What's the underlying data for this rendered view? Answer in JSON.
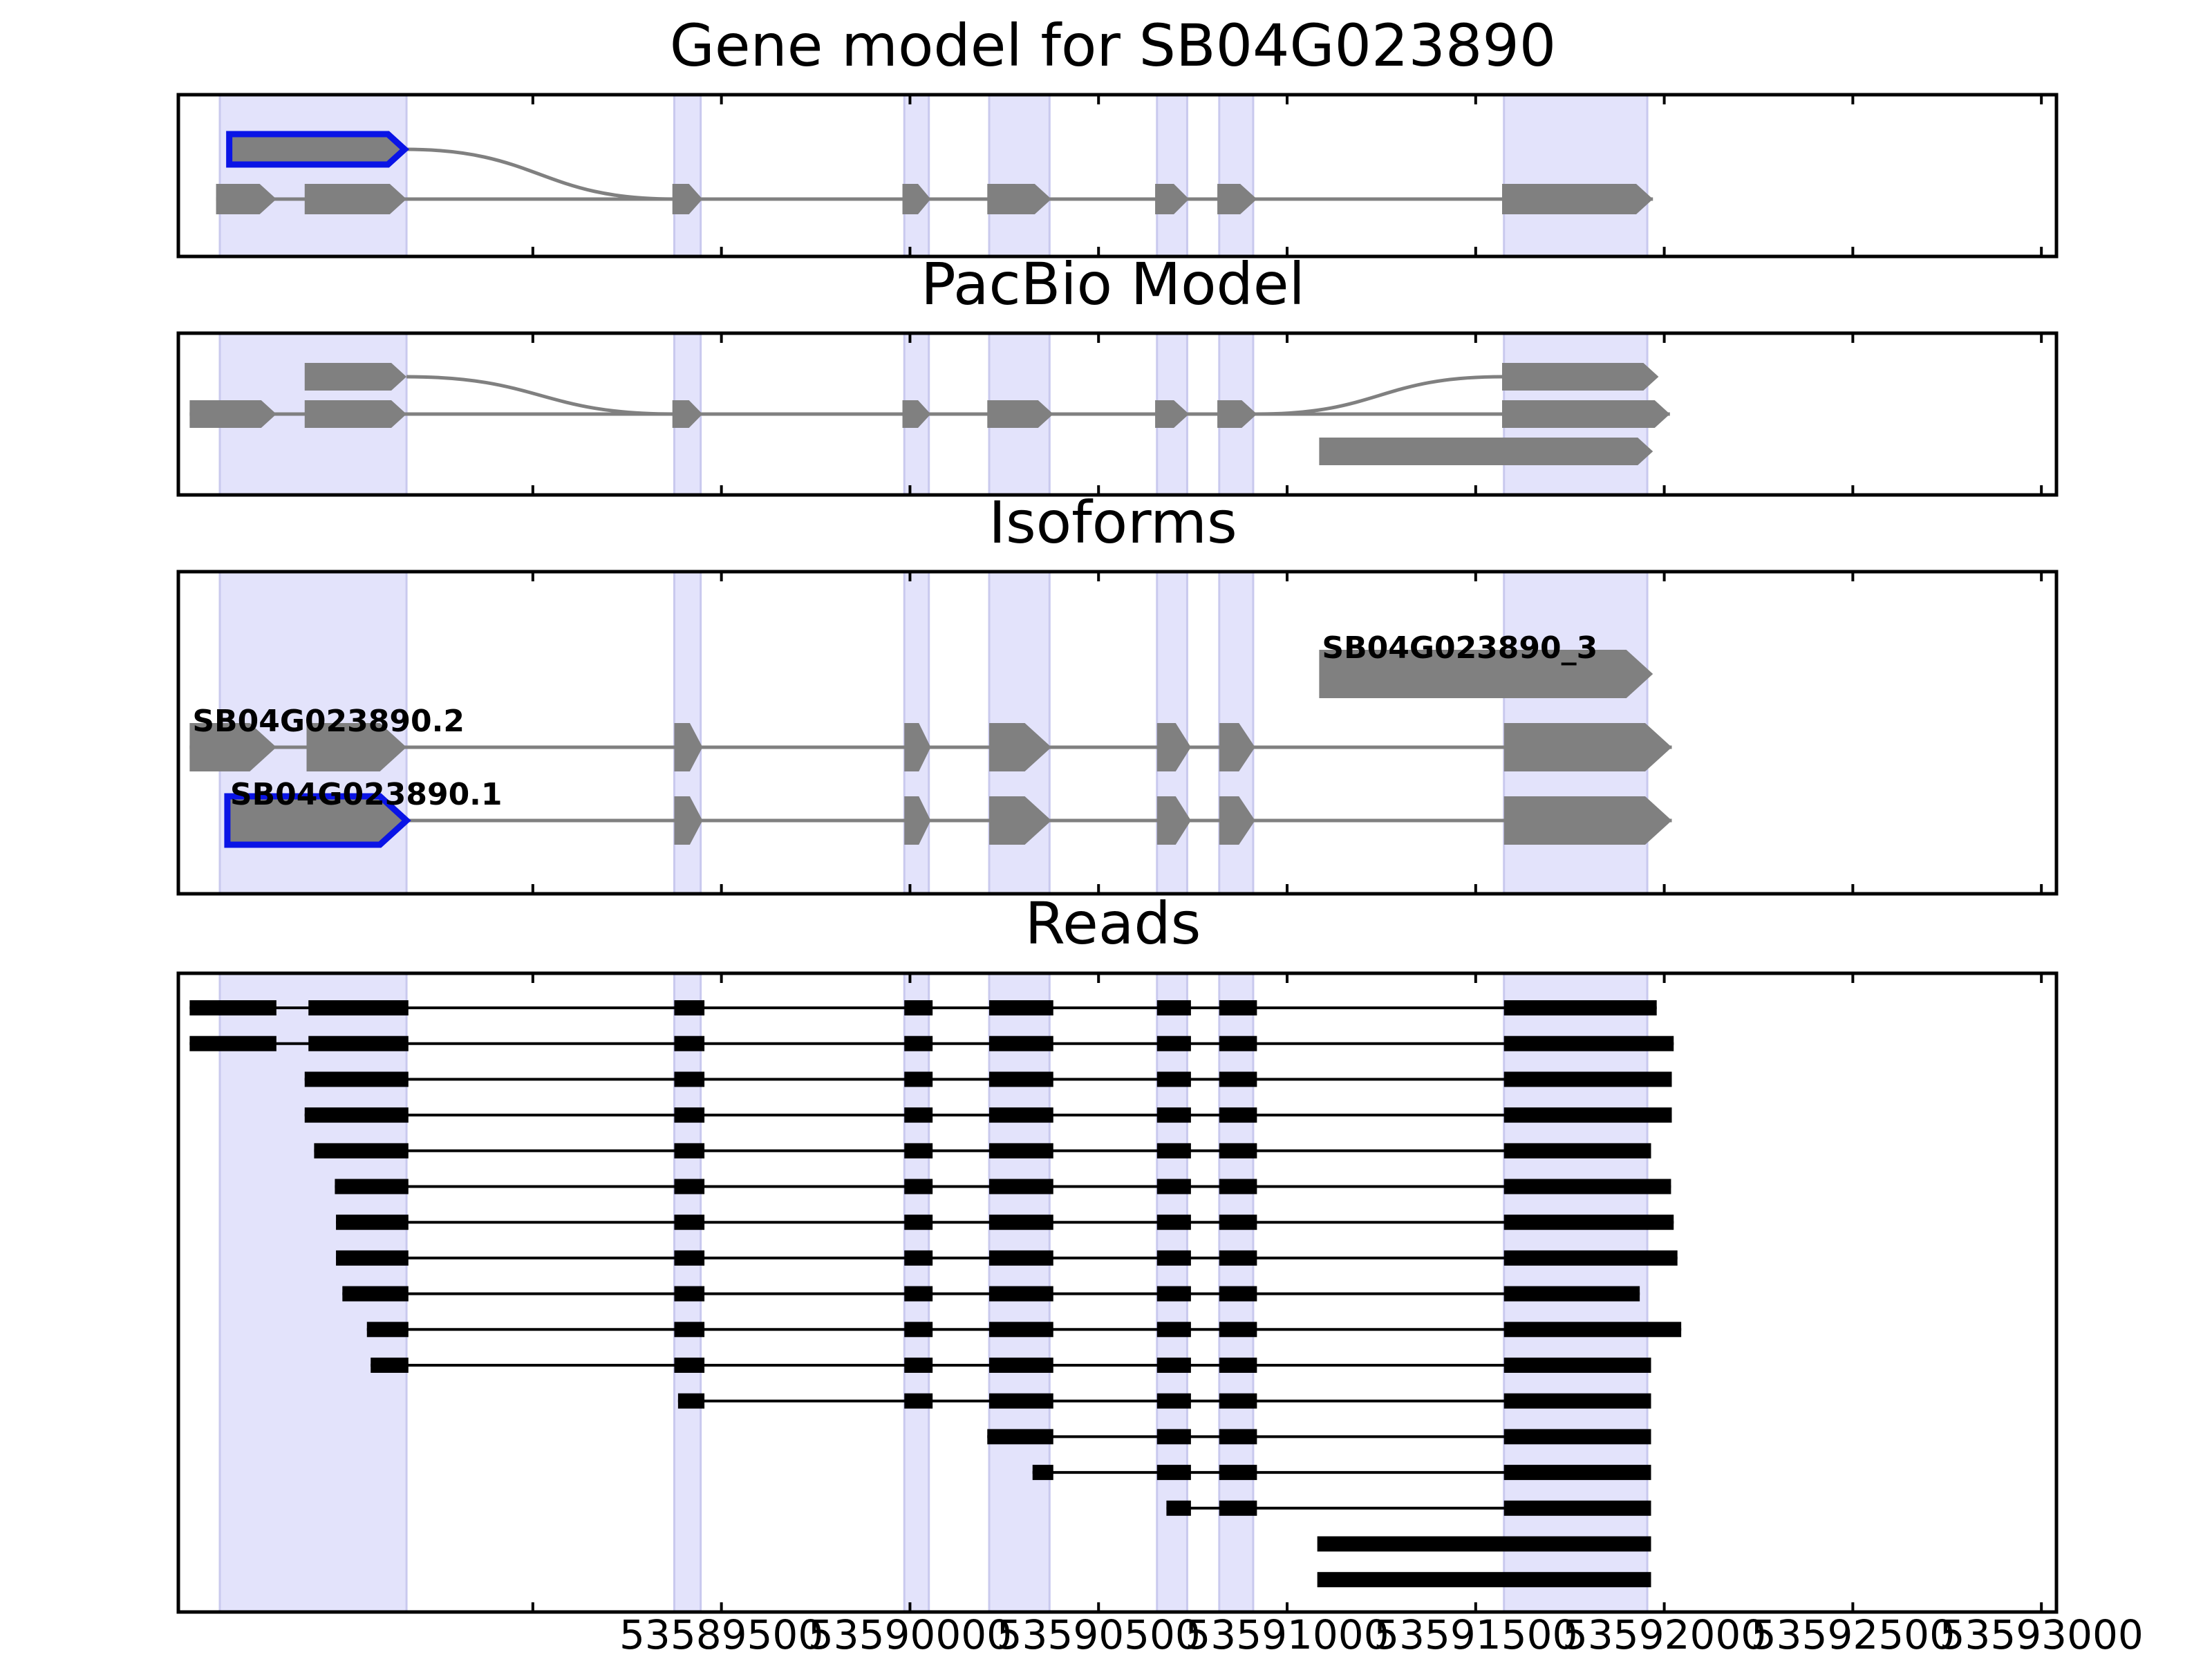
{
  "figure": {
    "xmin": 53588060,
    "xmax": 53593040,
    "xticks": [
      {
        "value": 53589500,
        "label": "53589500"
      },
      {
        "value": 53590000,
        "label": "53590000"
      },
      {
        "value": 53590500,
        "label": "53590500"
      },
      {
        "value": 53591000,
        "label": "53591000"
      },
      {
        "value": 53591500,
        "label": "53591500"
      },
      {
        "value": 53592000,
        "label": "53592000"
      },
      {
        "value": 53592500,
        "label": "53592500"
      },
      {
        "value": 53593000,
        "label": "53593000"
      }
    ],
    "xtick_minor_extra": [
      53589000
    ],
    "colors": {
      "region_fill": "#e3e3fb",
      "region_edge": "#c9c9ee",
      "feature": "#808080",
      "highlight": "#0a14e6",
      "read": "#000000",
      "axis": "#000000"
    },
    "shaded_regions": [
      [
        53588170,
        53588665
      ],
      [
        53589375,
        53589445
      ],
      [
        53589985,
        53590050
      ],
      [
        53590210,
        53590370
      ],
      [
        53590655,
        53590735
      ],
      [
        53590820,
        53590910
      ],
      [
        53591575,
        53591955
      ]
    ]
  },
  "panels": [
    {
      "id": "gene-model",
      "title": "Gene model for SB04G023890",
      "rows": 2,
      "tracks": [
        {
          "row": 0,
          "highlight": true,
          "curve_to_row": 1,
          "exons": [
            [
              53588195,
              53588660
            ]
          ]
        },
        {
          "row": 1,
          "exons": [
            [
              53588160,
              53588320
            ],
            [
              53588395,
              53588665
            ],
            [
              53589370,
              53589450
            ],
            [
              53589980,
              53590055
            ],
            [
              53590205,
              53590375
            ],
            [
              53590650,
              53590740
            ],
            [
              53590815,
              53590920
            ],
            [
              53591570,
              53591970
            ]
          ]
        }
      ]
    },
    {
      "id": "pacbio-model",
      "title": "PacBio Model",
      "rows": 3,
      "tracks": [
        {
          "row": 0,
          "curve_to_row": 1,
          "exons": [
            [
              53588395,
              53588665
            ]
          ]
        },
        {
          "row": 1,
          "exons": [
            [
              53588090,
              53588320
            ],
            [
              53588395,
              53588665
            ],
            [
              53589370,
              53589450
            ],
            [
              53589980,
              53590055
            ],
            [
              53590205,
              53590380
            ],
            [
              53590650,
              53590740
            ],
            [
              53590815,
              53590920
            ],
            [
              53591570,
              53592015
            ]
          ]
        },
        {
          "row": 0,
          "curve_from_row": 1,
          "exons": [
            [
              53591570,
              53591985
            ]
          ]
        },
        {
          "row": 2,
          "exons": [
            [
              53591085,
              53591970
            ]
          ]
        }
      ]
    },
    {
      "id": "isoforms",
      "title": "Isoforms",
      "rows": 3,
      "tracks": [
        {
          "row": 0,
          "label": "SB04G023890_3",
          "exons": [
            [
              53591085,
              53591970
            ]
          ]
        },
        {
          "row": 1,
          "label": "SB04G023890.2",
          "exons": [
            [
              53588090,
              53588320
            ],
            [
              53588400,
              53588665
            ],
            [
              53589375,
              53589450
            ],
            [
              53589985,
              53590055
            ],
            [
              53590210,
              53590375
            ],
            [
              53590655,
              53590745
            ],
            [
              53590820,
              53590915
            ],
            [
              53591575,
              53592020
            ]
          ]
        },
        {
          "row": 2,
          "label": "SB04G023890.1",
          "highlight": true,
          "exons": [
            [
              53588190,
              53588665
            ],
            [
              53589375,
              53589450
            ],
            [
              53589985,
              53590055
            ],
            [
              53590210,
              53590375
            ],
            [
              53590655,
              53590745
            ],
            [
              53590820,
              53590915
            ],
            [
              53591575,
              53592020
            ]
          ]
        }
      ]
    },
    {
      "id": "reads",
      "title": "Reads",
      "rows": 17,
      "reads": [
        [
          [
            53588090,
            53588320
          ],
          [
            53588405,
            53588670
          ],
          [
            53589375,
            53589455
          ],
          [
            53589985,
            53590060
          ],
          [
            53590210,
            53590380
          ],
          [
            53590655,
            53590745
          ],
          [
            53590820,
            53590920
          ],
          [
            53591575,
            53591980
          ]
        ],
        [
          [
            53588090,
            53588320
          ],
          [
            53588405,
            53588670
          ],
          [
            53589375,
            53589455
          ],
          [
            53589985,
            53590060
          ],
          [
            53590210,
            53590380
          ],
          [
            53590655,
            53590745
          ],
          [
            53590820,
            53590920
          ],
          [
            53591575,
            53592025
          ]
        ],
        [
          [
            53588395,
            53588670
          ],
          [
            53589375,
            53589455
          ],
          [
            53589985,
            53590060
          ],
          [
            53590210,
            53590380
          ],
          [
            53590655,
            53590745
          ],
          [
            53590820,
            53590920
          ],
          [
            53591575,
            53592020
          ]
        ],
        [
          [
            53588395,
            53588670
          ],
          [
            53589375,
            53589455
          ],
          [
            53589985,
            53590060
          ],
          [
            53590210,
            53590380
          ],
          [
            53590655,
            53590745
          ],
          [
            53590820,
            53590920
          ],
          [
            53591575,
            53592020
          ]
        ],
        [
          [
            53588420,
            53588670
          ],
          [
            53589375,
            53589455
          ],
          [
            53589985,
            53590060
          ],
          [
            53590210,
            53590380
          ],
          [
            53590655,
            53590745
          ],
          [
            53590820,
            53590920
          ],
          [
            53591575,
            53591965
          ]
        ],
        [
          [
            53588475,
            53588670
          ],
          [
            53589375,
            53589455
          ],
          [
            53589985,
            53590060
          ],
          [
            53590210,
            53590380
          ],
          [
            53590655,
            53590745
          ],
          [
            53590820,
            53590920
          ],
          [
            53591575,
            53592018
          ]
        ],
        [
          [
            53588478,
            53588670
          ],
          [
            53589375,
            53589455
          ],
          [
            53589985,
            53590060
          ],
          [
            53590210,
            53590380
          ],
          [
            53590655,
            53590745
          ],
          [
            53590820,
            53590920
          ],
          [
            53591575,
            53592025
          ]
        ],
        [
          [
            53588478,
            53588670
          ],
          [
            53589375,
            53589455
          ],
          [
            53589985,
            53590060
          ],
          [
            53590210,
            53590380
          ],
          [
            53590655,
            53590745
          ],
          [
            53590820,
            53590920
          ],
          [
            53591575,
            53592035
          ]
        ],
        [
          [
            53588495,
            53588670
          ],
          [
            53589375,
            53589455
          ],
          [
            53589985,
            53590060
          ],
          [
            53590210,
            53590380
          ],
          [
            53590655,
            53590745
          ],
          [
            53590820,
            53590920
          ],
          [
            53591575,
            53591935
          ]
        ],
        [
          [
            53588560,
            53588670
          ],
          [
            53589375,
            53589455
          ],
          [
            53589985,
            53590060
          ],
          [
            53590210,
            53590380
          ],
          [
            53590655,
            53590745
          ],
          [
            53590820,
            53590920
          ],
          [
            53591575,
            53592045
          ]
        ],
        [
          [
            53588570,
            53588670
          ],
          [
            53589375,
            53589455
          ],
          [
            53589985,
            53590060
          ],
          [
            53590210,
            53590380
          ],
          [
            53590655,
            53590745
          ],
          [
            53590820,
            53590920
          ],
          [
            53591575,
            53591965
          ]
        ],
        [
          [
            53589385,
            53589455
          ],
          [
            53589985,
            53590060
          ],
          [
            53590210,
            53590380
          ],
          [
            53590655,
            53590745
          ],
          [
            53590820,
            53590920
          ],
          [
            53591575,
            53591965
          ]
        ],
        [
          [
            53590205,
            53590380
          ],
          [
            53590655,
            53590745
          ],
          [
            53590820,
            53590920
          ],
          [
            53591575,
            53591965
          ]
        ],
        [
          [
            53590325,
            53590380
          ],
          [
            53590655,
            53590745
          ],
          [
            53590820,
            53590920
          ],
          [
            53591575,
            53591965
          ]
        ],
        [
          [
            53590680,
            53590745
          ],
          [
            53590820,
            53590920
          ],
          [
            53591575,
            53591965
          ]
        ],
        [
          [
            53591080,
            53591965
          ]
        ],
        [
          [
            53591080,
            53591965
          ]
        ]
      ]
    }
  ]
}
